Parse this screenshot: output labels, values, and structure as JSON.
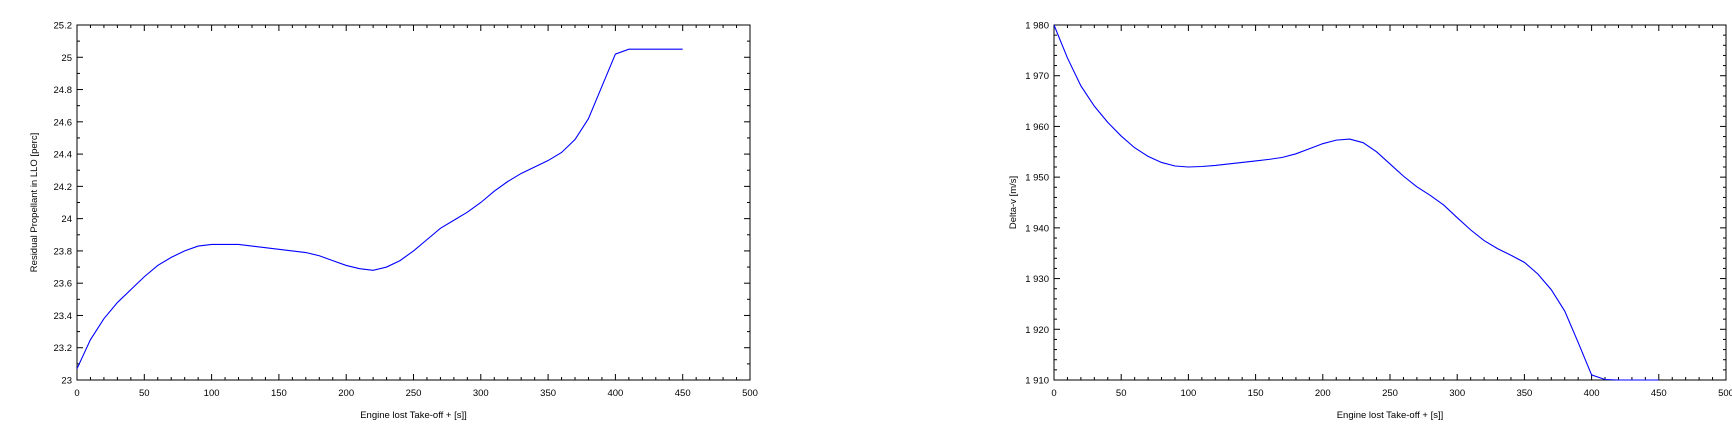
{
  "chart_data": [
    {
      "type": "line",
      "title": "",
      "xlabel": "Engine lost Take-off + [s]]",
      "ylabel": "Residual Propellant in LLO [perc]",
      "xlim": [
        0,
        500
      ],
      "ylim": [
        23,
        25.2
      ],
      "xticks": [
        0,
        50,
        100,
        150,
        200,
        250,
        300,
        350,
        400,
        450,
        500
      ],
      "yticks": [
        23,
        23.2,
        23.4,
        23.6,
        23.8,
        24,
        24.2,
        24.4,
        24.6,
        24.8,
        25,
        25.2
      ],
      "xtick_labels": [
        "0",
        "50",
        "100",
        "150",
        "200",
        "250",
        "300",
        "350",
        "400",
        "450",
        "500"
      ],
      "ytick_labels": [
        "23",
        "23.2",
        "23.4",
        "23.6",
        "23.8",
        "24",
        "24.2",
        "24.4",
        "24.6",
        "24.8",
        "25",
        "25.2"
      ],
      "grid": false,
      "series": [
        {
          "color": "#0000ff",
          "x": [
            0,
            10,
            20,
            30,
            40,
            50,
            60,
            70,
            80,
            90,
            100,
            110,
            120,
            130,
            140,
            150,
            160,
            170,
            180,
            190,
            200,
            210,
            220,
            230,
            240,
            250,
            260,
            270,
            280,
            290,
            300,
            310,
            320,
            330,
            340,
            350,
            360,
            370,
            380,
            390,
            400,
            410,
            420,
            430,
            440,
            450
          ],
          "y": [
            23.07,
            23.25,
            23.38,
            23.48,
            23.56,
            23.64,
            23.71,
            23.76,
            23.8,
            23.83,
            23.84,
            23.84,
            23.84,
            23.83,
            23.82,
            23.81,
            23.8,
            23.79,
            23.77,
            23.74,
            23.71,
            23.69,
            23.68,
            23.7,
            23.74,
            23.8,
            23.87,
            23.94,
            23.99,
            24.04,
            24.1,
            24.17,
            24.23,
            24.28,
            24.32,
            24.36,
            24.41,
            24.49,
            24.62,
            24.82,
            25.02,
            25.05,
            25.05,
            25.05,
            25.05,
            25.05
          ]
        }
      ]
    },
    {
      "type": "line",
      "title": "",
      "xlabel": "Engine lost Take-off + [s]]",
      "ylabel": "Delta-v [m/s]",
      "xlim": [
        0,
        500
      ],
      "ylim": [
        1910,
        1980
      ],
      "xticks": [
        0,
        50,
        100,
        150,
        200,
        250,
        300,
        350,
        400,
        450,
        500
      ],
      "yticks": [
        1910,
        1920,
        1930,
        1940,
        1950,
        1960,
        1970,
        1980
      ],
      "xtick_labels": [
        "0",
        "50",
        "100",
        "150",
        "200",
        "250",
        "300",
        "350",
        "400",
        "450",
        "500"
      ],
      "ytick_labels": [
        "1 910",
        "1 920",
        "1 930",
        "1 940",
        "1 950",
        "1 960",
        "1 970",
        "1 980"
      ],
      "grid": false,
      "series": [
        {
          "color": "#0000ff",
          "x": [
            0,
            10,
            20,
            30,
            40,
            50,
            60,
            70,
            80,
            90,
            100,
            110,
            120,
            130,
            140,
            150,
            160,
            170,
            180,
            190,
            200,
            210,
            220,
            230,
            240,
            250,
            260,
            270,
            280,
            290,
            300,
            310,
            320,
            330,
            340,
            350,
            360,
            370,
            380,
            390,
            400,
            410,
            420,
            430,
            440,
            450
          ],
          "y": [
            1980,
            1973.5,
            1968,
            1964,
            1960.8,
            1958.1,
            1955.8,
            1954.1,
            1952.9,
            1952.2,
            1952,
            1952.1,
            1952.3,
            1952.6,
            1952.9,
            1953.2,
            1953.5,
            1953.9,
            1954.6,
            1955.6,
            1956.6,
            1957.3,
            1957.5,
            1956.8,
            1955,
            1952.6,
            1950.2,
            1948.1,
            1946.4,
            1944.5,
            1942,
            1939.6,
            1937.5,
            1935.9,
            1934.6,
            1933.2,
            1930.9,
            1927.8,
            1923.6,
            1917.4,
            1911,
            1910.1,
            1910,
            1910,
            1910,
            1910
          ]
        }
      ]
    }
  ]
}
